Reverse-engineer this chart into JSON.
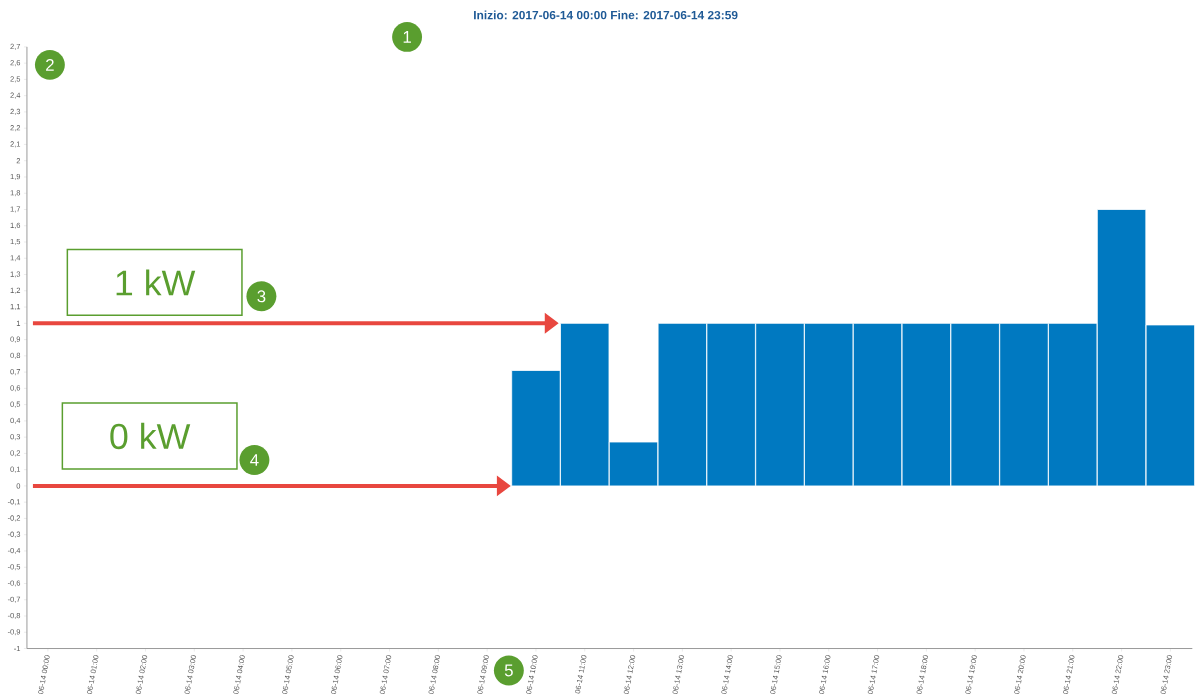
{
  "chart_data": {
    "type": "bar",
    "title": "Inizio:  2017-06-14 00:00    Fine:  2017-06-14 23:59",
    "categories": [
      "06-14 00:00",
      "06-14 01:00",
      "06-14 02:00",
      "06-14 03:00",
      "06-14 04:00",
      "06-14 05:00",
      "06-14 06:00",
      "06-14 07:00",
      "06-14 08:00",
      "06-14 09:00",
      "06-14 10:00",
      "06-14 11:00",
      "06-14 12:00",
      "06-14 13:00",
      "06-14 14:00",
      "06-14 15:00",
      "06-14 16:00",
      "06-14 17:00",
      "06-14 18:00",
      "06-14 19:00",
      "06-14 20:00",
      "06-14 21:00",
      "06-14 22:00",
      "06-14 23:00"
    ],
    "values": [
      null,
      null,
      null,
      null,
      null,
      null,
      null,
      null,
      null,
      null,
      0.71,
      1.0,
      0.27,
      1.0,
      1.0,
      1.0,
      1.0,
      1.0,
      1.0,
      1.0,
      1.0,
      1.0,
      1.7,
      0.99
    ],
    "color": "#0079c1",
    "ylim": [
      -1,
      2.7
    ],
    "yticks": [
      -1,
      {
        "value": -0.9,
        "label": "-0,9"
      },
      {
        "value": -0.8,
        "label": "-0,8"
      },
      {
        "value": -0.7,
        "label": "-0,7"
      },
      {
        "value": -0.6,
        "label": "-0,6"
      },
      {
        "value": -0.5,
        "label": "-0,5"
      },
      {
        "value": -0.4,
        "label": "-0,4"
      },
      {
        "value": -0.3,
        "label": "-0,3"
      },
      {
        "value": -0.2,
        "label": "-0,2"
      },
      {
        "value": -0.1,
        "label": "-0,1"
      },
      0,
      {
        "value": 0.1,
        "label": "0,1"
      },
      {
        "value": 0.2,
        "label": "0,2"
      },
      {
        "value": 0.3,
        "label": "0,3"
      },
      {
        "value": 0.4,
        "label": "0,4"
      },
      {
        "value": 0.5,
        "label": "0,5"
      },
      {
        "value": 0.6,
        "label": "0,6"
      },
      {
        "value": 0.7,
        "label": "0,7"
      },
      {
        "value": 0.8,
        "label": "0,8"
      },
      {
        "value": 0.9,
        "label": "0,9"
      },
      1,
      {
        "value": 1.1,
        "label": "1,1"
      },
      {
        "value": 1.2,
        "label": "1,2"
      },
      {
        "value": 1.3,
        "label": "1,3"
      },
      {
        "value": 1.4,
        "label": "1,4"
      },
      {
        "value": 1.5,
        "label": "1,5"
      },
      {
        "value": 1.6,
        "label": "1,6"
      },
      {
        "value": 1.7,
        "label": "1,7"
      },
      {
        "value": 1.8,
        "label": "1,8"
      },
      {
        "value": 1.9,
        "label": "1,9"
      },
      2,
      {
        "value": 2.1,
        "label": "2,1"
      },
      {
        "value": 2.2,
        "label": "2,2"
      },
      {
        "value": 2.3,
        "label": "2,3"
      },
      {
        "value": 2.4,
        "label": "2,4"
      },
      {
        "value": 2.5,
        "label": "2,5"
      },
      {
        "value": 2.6,
        "label": "2,6"
      },
      {
        "value": 2.7,
        "label": "2,7"
      }
    ],
    "annotations": [
      "1 kW",
      "0 kW",
      "1",
      "2",
      "3",
      "4",
      "5"
    ]
  }
}
